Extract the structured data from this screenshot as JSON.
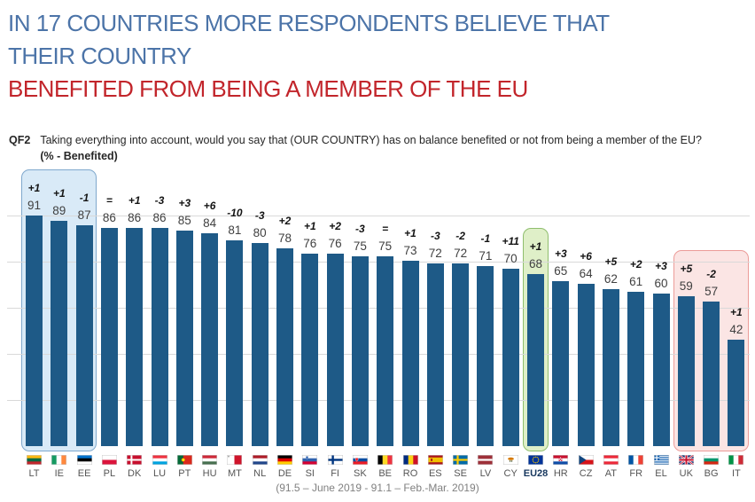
{
  "title": {
    "blue_line1": "IN 17 COUNTRIES MORE RESPONDENTS BELIEVE THAT",
    "blue_line2": "THEIR COUNTRY",
    "red_line": "BENEFITED FROM BEING A MEMBER OF THE EU",
    "blue_color": "#4C74A8",
    "red_color": "#C2252B"
  },
  "question": {
    "label": "QF2",
    "text": "Taking everything into account, would you say that (OUR COUNTRY) has on balance benefited or not from being a member of the EU?",
    "subtext": "(% - Benefited)"
  },
  "footer": "(91.5 – June 2019 - 91.1 – Feb.-Mar. 2019)",
  "chart_data": {
    "type": "bar",
    "title": "Benefited from being a member of the EU (% by country)",
    "xlabel": "",
    "ylabel": "% - Benefited",
    "ylim": [
      0,
      95
    ],
    "grid": true,
    "legend": "none",
    "bar_color": "#1E5A87",
    "value_label_color": "#404040",
    "change_label_color": "#141414",
    "categories": [
      "LT",
      "IE",
      "EE",
      "PL",
      "DK",
      "LU",
      "PT",
      "HU",
      "MT",
      "NL",
      "DE",
      "SI",
      "FI",
      "SK",
      "BE",
      "RO",
      "ES",
      "SE",
      "LV",
      "CY",
      "EU28",
      "HR",
      "CZ",
      "AT",
      "FR",
      "EL",
      "UK",
      "BG",
      "IT"
    ],
    "values": [
      91,
      89,
      87,
      86,
      86,
      86,
      85,
      84,
      81,
      80,
      78,
      76,
      76,
      75,
      75,
      73,
      72,
      72,
      71,
      70,
      68,
      65,
      64,
      62,
      61,
      60,
      59,
      57,
      42
    ],
    "changes": [
      "+1",
      "+1",
      "-1",
      "=",
      "+1",
      "-3",
      "+3",
      "+6",
      "-10",
      "-3",
      "+2",
      "+1",
      "+2",
      "-3",
      "=",
      "+1",
      "-3",
      "-2",
      "-1",
      "+11",
      "+1",
      "+3",
      "+6",
      "+5",
      "+2",
      "+3",
      "+5",
      "-2",
      "+1"
    ],
    "highlights": [
      {
        "name": "top-three",
        "countries": [
          "LT",
          "IE",
          "EE"
        ],
        "fill": "#D9EAF7",
        "border": "#7FA8CD"
      },
      {
        "name": "eu28-average",
        "countries": [
          "EU28"
        ],
        "fill": "#DFEFC8",
        "border": "#8FBE6E"
      },
      {
        "name": "bottom-three",
        "countries": [
          "UK",
          "BG",
          "IT"
        ],
        "fill": "#FBE5E4",
        "border": "#EC9C99"
      }
    ]
  }
}
